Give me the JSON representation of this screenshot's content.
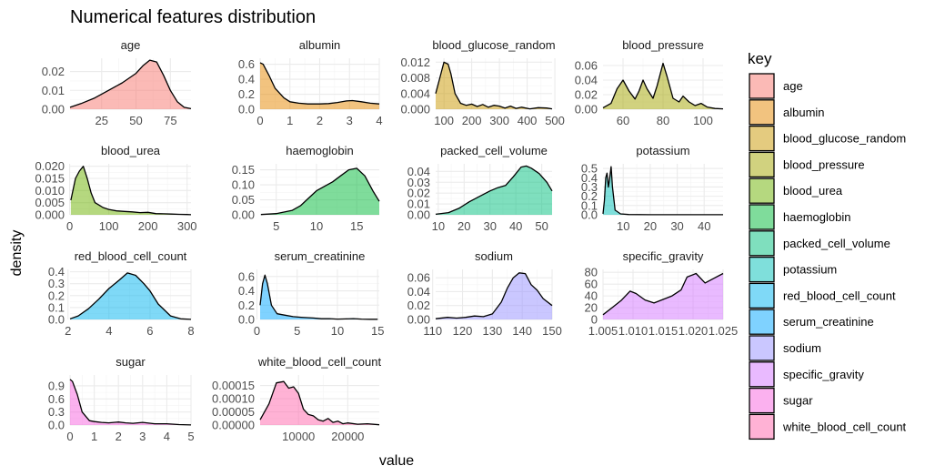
{
  "chart_data": {
    "type": "area",
    "title": "Numerical features distribution",
    "xlabel": "value",
    "ylabel": "density",
    "legend": {
      "title": "key",
      "placement": "right"
    },
    "grid": true,
    "panels": [
      {
        "name": "age",
        "color": "#F8766D",
        "xlim": [
          2,
          90
        ],
        "ylim": [
          0,
          0.027
        ],
        "xticks": [
          25,
          50,
          75
        ],
        "xtick_labels": [
          "25",
          "50",
          "75"
        ],
        "yticks": [
          0,
          0.01,
          0.02
        ],
        "ytick_labels": [
          "0.00",
          "0.01",
          "0.02"
        ],
        "x": [
          2,
          10,
          20,
          30,
          40,
          50,
          55,
          60,
          65,
          70,
          75,
          80,
          85,
          90
        ],
        "y": [
          0.001,
          0.003,
          0.006,
          0.01,
          0.014,
          0.019,
          0.023,
          0.026,
          0.025,
          0.018,
          0.01,
          0.004,
          0.001,
          0.0003
        ]
      },
      {
        "name": "albumin",
        "color": "#E58700",
        "xlim": [
          0,
          4
        ],
        "ylim": [
          0,
          0.68
        ],
        "xticks": [
          0,
          1,
          2,
          3,
          4
        ],
        "xtick_labels": [
          "0",
          "1",
          "2",
          "3",
          "4"
        ],
        "yticks": [
          0,
          0.2,
          0.4,
          0.6
        ],
        "ytick_labels": [
          "0.0",
          "0.2",
          "0.4",
          "0.6"
        ],
        "x": [
          0,
          0.1,
          0.3,
          0.5,
          0.8,
          1.0,
          1.3,
          1.6,
          2.0,
          2.3,
          2.6,
          2.9,
          3.1,
          3.4,
          3.7,
          4.0
        ],
        "y": [
          0.62,
          0.6,
          0.45,
          0.28,
          0.15,
          0.1,
          0.08,
          0.07,
          0.07,
          0.075,
          0.09,
          0.11,
          0.115,
          0.1,
          0.08,
          0.07
        ]
      },
      {
        "name": "blood_glucose_random",
        "color": "#C99800",
        "xlim": [
          70,
          490
        ],
        "ylim": [
          0,
          0.013
        ],
        "xticks": [
          100,
          200,
          300,
          400,
          500
        ],
        "xtick_labels": [
          "100",
          "200",
          "300",
          "400",
          "500"
        ],
        "yticks": [
          0,
          0.004,
          0.008,
          0.012
        ],
        "ytick_labels": [
          "0.000",
          "0.004",
          "0.008",
          "0.012"
        ],
        "x": [
          70,
          85,
          100,
          115,
          125,
          140,
          160,
          180,
          200,
          220,
          240,
          260,
          280,
          300,
          320,
          340,
          360,
          380,
          410,
          440,
          470,
          490
        ],
        "y": [
          0.004,
          0.008,
          0.012,
          0.0115,
          0.009,
          0.004,
          0.0015,
          0.001,
          0.0013,
          0.0007,
          0.0012,
          0.0005,
          0.001,
          0.0008,
          0.0003,
          0.0008,
          0.0002,
          0.0005,
          0.0001,
          0.0004,
          0.0003,
          0.0001
        ]
      },
      {
        "name": "blood_pressure",
        "color": "#A3A500",
        "xlim": [
          50,
          110
        ],
        "ylim": [
          0,
          0.07
        ],
        "xticks": [
          60,
          80,
          100
        ],
        "xtick_labels": [
          "60",
          "80",
          "100"
        ],
        "yticks": [
          0,
          0.02,
          0.04,
          0.06
        ],
        "ytick_labels": [
          "0.00",
          "0.02",
          "0.04",
          "0.06"
        ],
        "x": [
          50,
          54,
          57,
          60,
          63,
          66,
          68,
          70,
          72,
          75,
          77,
          80,
          82,
          85,
          88,
          90,
          93,
          96,
          99,
          102,
          106,
          110
        ],
        "y": [
          0.002,
          0.008,
          0.028,
          0.04,
          0.025,
          0.014,
          0.025,
          0.04,
          0.028,
          0.015,
          0.032,
          0.063,
          0.045,
          0.015,
          0.01,
          0.018,
          0.01,
          0.005,
          0.008,
          0.003,
          0.001,
          0.0005
        ]
      },
      {
        "name": "blood_urea",
        "color": "#6BB100",
        "xlim": [
          1,
          310
        ],
        "ylim": [
          0,
          0.021
        ],
        "xticks": [
          0,
          100,
          200,
          300
        ],
        "xtick_labels": [
          "0",
          "100",
          "200",
          "300"
        ],
        "yticks": [
          0,
          0.005,
          0.01,
          0.015,
          0.02
        ],
        "ytick_labels": [
          "0.000",
          "0.005",
          "0.010",
          "0.015",
          "0.020"
        ],
        "x": [
          3,
          15,
          25,
          35,
          45,
          55,
          65,
          75,
          85,
          100,
          120,
          140,
          160,
          180,
          200,
          220,
          240,
          260,
          280,
          300,
          310
        ],
        "y": [
          0.006,
          0.015,
          0.018,
          0.02,
          0.015,
          0.009,
          0.005,
          0.004,
          0.003,
          0.0022,
          0.0016,
          0.0014,
          0.0012,
          0.0009,
          0.001,
          0.0005,
          0.0004,
          0.0003,
          0.0002,
          0.0001,
          5e-05
        ]
      },
      {
        "name": "haemoglobin",
        "color": "#00BA38",
        "xlim": [
          3,
          17.8
        ],
        "ylim": [
          0,
          0.17
        ],
        "xticks": [
          5,
          10,
          15
        ],
        "xtick_labels": [
          "5",
          "10",
          "15"
        ],
        "yticks": [
          0,
          0.05,
          0.1,
          0.15
        ],
        "ytick_labels": [
          "0.00",
          "0.05",
          "0.10",
          "0.15"
        ],
        "x": [
          3.1,
          5,
          7,
          8,
          9,
          10,
          11,
          12,
          13,
          14,
          15,
          16,
          17,
          17.8
        ],
        "y": [
          0.001,
          0.004,
          0.015,
          0.03,
          0.055,
          0.08,
          0.095,
          0.11,
          0.13,
          0.15,
          0.155,
          0.13,
          0.08,
          0.045
        ]
      },
      {
        "name": "packed_cell_volume",
        "color": "#00BF7D",
        "xlim": [
          9,
          54
        ],
        "ylim": [
          0,
          0.047
        ],
        "xticks": [
          10,
          20,
          30,
          40,
          50
        ],
        "xtick_labels": [
          "10",
          "20",
          "30",
          "40",
          "50"
        ],
        "yticks": [
          0,
          0.01,
          0.02,
          0.03,
          0.04
        ],
        "ytick_labels": [
          "0.00",
          "0.01",
          "0.02",
          "0.03",
          "0.04"
        ],
        "x": [
          9,
          14,
          18,
          22,
          26,
          30,
          33,
          36,
          39,
          42,
          44,
          46,
          49,
          52,
          54
        ],
        "y": [
          0.0005,
          0.002,
          0.006,
          0.012,
          0.017,
          0.022,
          0.025,
          0.027,
          0.035,
          0.044,
          0.045,
          0.043,
          0.038,
          0.03,
          0.022
        ]
      },
      {
        "name": "potassium",
        "color": "#00C0B8",
        "xlim": [
          2.5,
          47
        ],
        "ylim": [
          0,
          0.55
        ],
        "xticks": [
          10,
          20,
          30,
          40
        ],
        "xtick_labels": [
          "10",
          "20",
          "30",
          "40"
        ],
        "yticks": [
          0,
          0.1,
          0.2,
          0.3,
          0.4,
          0.5
        ],
        "ytick_labels": [
          "0.0",
          "0.1",
          "0.2",
          "0.3",
          "0.4",
          "0.5"
        ],
        "x": [
          2.5,
          3,
          3.5,
          4,
          4.5,
          5,
          5.5,
          6,
          7,
          9,
          12,
          20,
          30,
          40,
          47
        ],
        "y": [
          0.01,
          0.15,
          0.4,
          0.45,
          0.3,
          0.4,
          0.52,
          0.3,
          0.05,
          0.01,
          0.003,
          0.001,
          0.001,
          0.001,
          0.0005
        ]
      },
      {
        "name": "red_blood_cell_count",
        "color": "#00B4EF",
        "xlim": [
          2.1,
          8
        ],
        "ylim": [
          0,
          0.42
        ],
        "xticks": [
          2,
          4,
          6,
          8
        ],
        "xtick_labels": [
          "2",
          "4",
          "6",
          "8"
        ],
        "yticks": [
          0,
          0.1,
          0.2,
          0.3,
          0.4
        ],
        "ytick_labels": [
          "0.0",
          "0.1",
          "0.2",
          "0.3",
          "0.4"
        ],
        "x": [
          2.1,
          2.5,
          3,
          3.5,
          4,
          4.5,
          4.9,
          5.3,
          5.7,
          6,
          6.4,
          7,
          7.5,
          8
        ],
        "y": [
          0.005,
          0.03,
          0.09,
          0.17,
          0.26,
          0.33,
          0.39,
          0.37,
          0.3,
          0.24,
          0.13,
          0.03,
          0.005,
          0.001
        ]
      },
      {
        "name": "serum_creatinine",
        "color": "#00A5FF",
        "xlim": [
          0.4,
          15.2
        ],
        "ylim": [
          0,
          0.7
        ],
        "xticks": [
          0,
          5,
          10,
          15
        ],
        "xtick_labels": [
          "0",
          "5",
          "10",
          "15"
        ],
        "yticks": [
          0,
          0.2,
          0.4,
          0.6
        ],
        "ytick_labels": [
          "0.0",
          "0.2",
          "0.4",
          "0.6"
        ],
        "x": [
          0.4,
          0.7,
          1.0,
          1.3,
          1.8,
          2.5,
          3.5,
          4.5,
          5.5,
          7,
          8,
          9,
          10,
          11,
          12,
          13,
          14,
          15
        ],
        "y": [
          0.2,
          0.5,
          0.62,
          0.5,
          0.2,
          0.08,
          0.06,
          0.04,
          0.03,
          0.02,
          0.01,
          0.012,
          0.005,
          0.008,
          0.012,
          0.005,
          0.003,
          0.002
        ]
      },
      {
        "name": "sodium",
        "color": "#9590FF",
        "xlim": [
          111,
          150
        ],
        "ylim": [
          0,
          0.072
        ],
        "xticks": [
          110,
          120,
          130,
          140,
          150
        ],
        "xtick_labels": [
          "110",
          "120",
          "130",
          "140",
          "150"
        ],
        "yticks": [
          0,
          0.02,
          0.04,
          0.06
        ],
        "ytick_labels": [
          "0.00",
          "0.02",
          "0.04",
          "0.06"
        ],
        "x": [
          111,
          115,
          118,
          121,
          124,
          127,
          130,
          133,
          135,
          137,
          139,
          141,
          143,
          145,
          147,
          150
        ],
        "y": [
          0.001,
          0.003,
          0.002,
          0.003,
          0.005,
          0.004,
          0.008,
          0.025,
          0.045,
          0.06,
          0.067,
          0.066,
          0.05,
          0.042,
          0.03,
          0.02
        ]
      },
      {
        "name": "specific_gravity",
        "color": "#D376FF",
        "xlim": [
          1.005,
          1.025
        ],
        "ylim": [
          0,
          85
        ],
        "xticks": [
          1.005,
          1.01,
          1.015,
          1.02,
          1.025
        ],
        "xtick_labels": [
          "1.005",
          "1.010",
          "1.015",
          "1.020",
          "1.025"
        ],
        "yticks": [
          0,
          20,
          40,
          60,
          80
        ],
        "ytick_labels": [
          "0",
          "20",
          "40",
          "60",
          "80"
        ],
        "x": [
          1.005,
          1.0065,
          1.008,
          1.0095,
          1.0105,
          1.012,
          1.0135,
          1.015,
          1.0165,
          1.018,
          1.019,
          1.0205,
          1.022,
          1.0235,
          1.025
        ],
        "y": [
          8,
          20,
          32,
          48,
          44,
          33,
          28,
          34,
          40,
          50,
          72,
          78,
          62,
          70,
          78
        ]
      },
      {
        "name": "sugar",
        "color": "#F763E0",
        "xlim": [
          0,
          5
        ],
        "ylim": [
          0,
          1.15
        ],
        "xticks": [
          0,
          1,
          2,
          3,
          4,
          5
        ],
        "xtick_labels": [
          "0",
          "1",
          "2",
          "3",
          "4",
          "5"
        ],
        "yticks": [
          0,
          0.3,
          0.6,
          0.9
        ],
        "ytick_labels": [
          "0.0",
          "0.3",
          "0.6",
          "0.9"
        ],
        "x": [
          0,
          0.1,
          0.3,
          0.5,
          0.8,
          1.0,
          1.3,
          1.6,
          2.0,
          2.3,
          2.6,
          3.0,
          3.5,
          4.0,
          4.5,
          5.0
        ],
        "y": [
          1.05,
          1.0,
          0.7,
          0.3,
          0.1,
          0.08,
          0.06,
          0.05,
          0.07,
          0.05,
          0.04,
          0.06,
          0.03,
          0.03,
          0.01,
          0.003
        ]
      },
      {
        "name": "white_blood_cell_count",
        "color": "#FF65AC",
        "xlim": [
          2200,
          26400
        ],
        "ylim": [
          0,
          0.00019
        ],
        "xticks": [
          10000,
          20000
        ],
        "xtick_labels": [
          "10000",
          "20000"
        ],
        "yticks": [
          0,
          5e-05,
          0.0001,
          0.00015
        ],
        "ytick_labels": [
          "0.00000",
          "0.00005",
          "0.00010",
          "0.00015"
        ],
        "x": [
          2200,
          4000,
          5500,
          7000,
          8000,
          9000,
          10000,
          11000,
          12000,
          13000,
          14000,
          15000,
          16000,
          17000,
          18000,
          19000,
          20000,
          22000,
          24000,
          26400
        ],
        "y": [
          2e-05,
          8e-05,
          0.00016,
          0.000165,
          0.00014,
          0.000145,
          0.00012,
          6e-05,
          4e-05,
          3.5e-05,
          2e-05,
          1.5e-05,
          2.5e-05,
          1e-05,
          1.5e-05,
          5e-06,
          8e-06,
          3e-06,
          5e-06,
          1e-06
        ]
      }
    ]
  }
}
